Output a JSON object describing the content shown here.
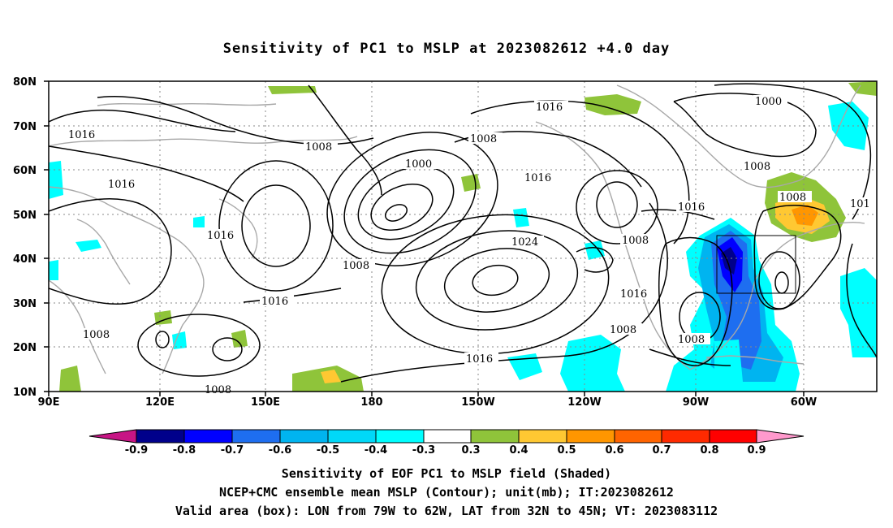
{
  "title": "Sensitivity of PC1 to MSLP at 2023082612 +4.0 day",
  "map": {
    "lat_labels": [
      "80N",
      "70N",
      "60N",
      "50N",
      "40N",
      "30N",
      "20N",
      "10N"
    ],
    "lon_labels": [
      "90E",
      "120E",
      "150E",
      "180",
      "150W",
      "120W",
      "90W",
      "60W"
    ],
    "contour_labels": [
      {
        "text": "1016",
        "id": "c1"
      },
      {
        "text": "1008",
        "id": "c2"
      },
      {
        "text": "1016",
        "id": "c3"
      },
      {
        "text": "1000",
        "id": "c4"
      },
      {
        "text": "1008",
        "id": "c5"
      },
      {
        "text": "1016",
        "id": "c6"
      },
      {
        "text": "1000",
        "id": "c7"
      },
      {
        "text": "1008",
        "id": "c8"
      },
      {
        "text": "1008",
        "id": "c9"
      },
      {
        "text": "1016",
        "id": "c10"
      },
      {
        "text": "1016",
        "id": "c11"
      },
      {
        "text": "1024",
        "id": "c12"
      },
      {
        "text": "1008",
        "id": "c13"
      },
      {
        "text": "1016",
        "id": "c14"
      },
      {
        "text": "1008",
        "id": "c15"
      },
      {
        "text": "1008",
        "id": "c16"
      },
      {
        "text": "1016",
        "id": "c17"
      },
      {
        "text": "1008",
        "id": "c18"
      },
      {
        "text": "1016",
        "id": "c19"
      },
      {
        "text": "1008",
        "id": "c20"
      },
      {
        "text": "101",
        "id": "c21"
      },
      {
        "text": "1008",
        "id": "c22"
      },
      {
        "text": "1016",
        "id": "c23"
      },
      {
        "text": "1008",
        "id": "c24"
      }
    ],
    "colors": {
      "neg09": "#c71585",
      "neg08": "#00008b",
      "neg07": "#0000ff",
      "neg06": "#1e6ef0",
      "neg05": "#00b4f0",
      "neg04": "#00ffff",
      "pos04": "#8fc43a",
      "pos05": "#ffc832",
      "pos06": "#ff9600",
      "pos07": "#ff6400",
      "pos08": "#ff2a00",
      "pos09": "#ff0000",
      "pos10": "#ff99cc"
    }
  },
  "colorbar": {
    "labels": [
      "-0.9",
      "-0.8",
      "-0.7",
      "-0.6",
      "-0.5",
      "-0.4",
      "-0.3",
      "0.3",
      "0.4",
      "0.5",
      "0.6",
      "0.7",
      "0.8",
      "0.9"
    ]
  },
  "captions": [
    "Sensitivity of EOF PC1 to MSLP field (Shaded)",
    "NCEP+CMC ensemble mean MSLP (Contour); unit(mb); IT:2023082612",
    "Valid area (box): LON from 79W to 62W, LAT from 32N to 45N; VT: 2023083112"
  ]
}
